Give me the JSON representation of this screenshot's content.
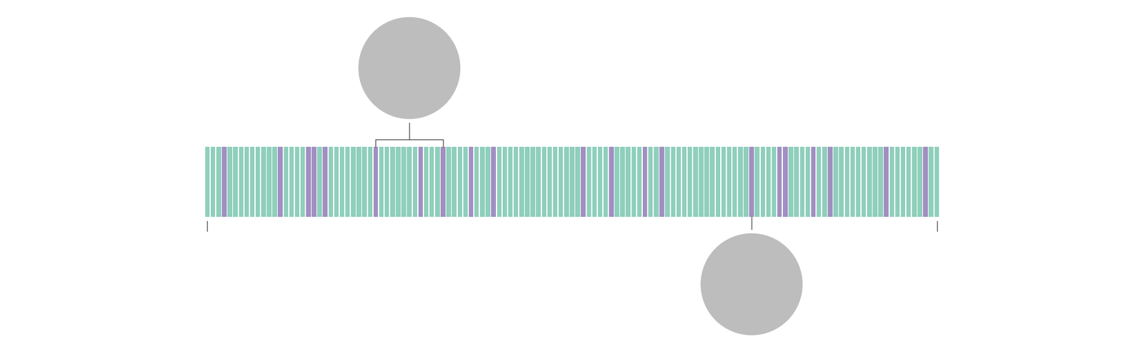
{
  "chart_data": {
    "type": "bar",
    "tick_labels": false,
    "ylim": [
      0,
      1
    ],
    "values": [
      1,
      1,
      1,
      1,
      1,
      1,
      1,
      1,
      1,
      1,
      1,
      1,
      1,
      1,
      1,
      1,
      1,
      1,
      1,
      1,
      1,
      1,
      1,
      1,
      1,
      1,
      1,
      1,
      1,
      1,
      1,
      1,
      1,
      1,
      1,
      1,
      1,
      1,
      1,
      1,
      1,
      1,
      1,
      1,
      1,
      1,
      1,
      1,
      1,
      1,
      1,
      1,
      1,
      1,
      1,
      1,
      1,
      1,
      1,
      1,
      1,
      1,
      1,
      1,
      1,
      1,
      1,
      1,
      1,
      1,
      1,
      1,
      1,
      1,
      1,
      1,
      1,
      1,
      1,
      1,
      1,
      1,
      1,
      1,
      1,
      1,
      1,
      1,
      1,
      1,
      1,
      1,
      1,
      1,
      1,
      1,
      1,
      1,
      1,
      1,
      1,
      1,
      1,
      1,
      1,
      1,
      1,
      1,
      1,
      1,
      1,
      1,
      1,
      1,
      1,
      1,
      1,
      1,
      1,
      1,
      1,
      1,
      1,
      1,
      1,
      1,
      1,
      1,
      1,
      1,
      1
    ],
    "colors": [
      "#8fcfbb",
      "#8fcfbb",
      "#8fcfbb",
      "#a18fc2",
      "#8fcfbb",
      "#8fcfbb",
      "#8fcfbb",
      "#8fcfbb",
      "#8fcfbb",
      "#8fcfbb",
      "#8fcfbb",
      "#8fcfbb",
      "#8fcfbb",
      "#a18fc2",
      "#8fcfbb",
      "#8fcfbb",
      "#8fcfbb",
      "#8fcfbb",
      "#a18fc2",
      "#a18fc2",
      "#8fcfbb",
      "#a18fc2",
      "#8fcfbb",
      "#8fcfbb",
      "#8fcfbb",
      "#8fcfbb",
      "#8fcfbb",
      "#8fcfbb",
      "#8fcfbb",
      "#8fcfbb",
      "#a18fc2",
      "#8fcfbb",
      "#8fcfbb",
      "#8fcfbb",
      "#8fcfbb",
      "#8fcfbb",
      "#8fcfbb",
      "#8fcfbb",
      "#a18fc2",
      "#8fcfbb",
      "#8fcfbb",
      "#8fcfbb",
      "#a18fc2",
      "#8fcfbb",
      "#8fcfbb",
      "#8fcfbb",
      "#8fcfbb",
      "#a18fc2",
      "#8fcfbb",
      "#8fcfbb",
      "#8fcfbb",
      "#a18fc2",
      "#8fcfbb",
      "#8fcfbb",
      "#8fcfbb",
      "#8fcfbb",
      "#8fcfbb",
      "#8fcfbb",
      "#8fcfbb",
      "#8fcfbb",
      "#8fcfbb",
      "#8fcfbb",
      "#8fcfbb",
      "#8fcfbb",
      "#8fcfbb",
      "#8fcfbb",
      "#8fcfbb",
      "#a18fc2",
      "#8fcfbb",
      "#8fcfbb",
      "#8fcfbb",
      "#8fcfbb",
      "#a18fc2",
      "#8fcfbb",
      "#8fcfbb",
      "#8fcfbb",
      "#8fcfbb",
      "#8fcfbb",
      "#a18fc2",
      "#8fcfbb",
      "#8fcfbb",
      "#a18fc2",
      "#8fcfbb",
      "#8fcfbb",
      "#8fcfbb",
      "#8fcfbb",
      "#8fcfbb",
      "#8fcfbb",
      "#8fcfbb",
      "#8fcfbb",
      "#8fcfbb",
      "#8fcfbb",
      "#8fcfbb",
      "#8fcfbb",
      "#8fcfbb",
      "#8fcfbb",
      "#8fcfbb",
      "#a18fc2",
      "#8fcfbb",
      "#8fcfbb",
      "#8fcfbb",
      "#8fcfbb",
      "#a18fc2",
      "#a18fc2",
      "#8fcfbb",
      "#8fcfbb",
      "#8fcfbb",
      "#8fcfbb",
      "#a18fc2",
      "#8fcfbb",
      "#8fcfbb",
      "#a18fc2",
      "#8fcfbb",
      "#8fcfbb",
      "#8fcfbb",
      "#8fcfbb",
      "#8fcfbb",
      "#8fcfbb",
      "#8fcfbb",
      "#8fcfbb",
      "#8fcfbb",
      "#a18fc2",
      "#8fcfbb",
      "#8fcfbb",
      "#8fcfbb",
      "#8fcfbb",
      "#8fcfbb",
      "#8fcfbb",
      "#a18fc2",
      "#8fcfbb",
      "#8fcfbb"
    ]
  }
}
